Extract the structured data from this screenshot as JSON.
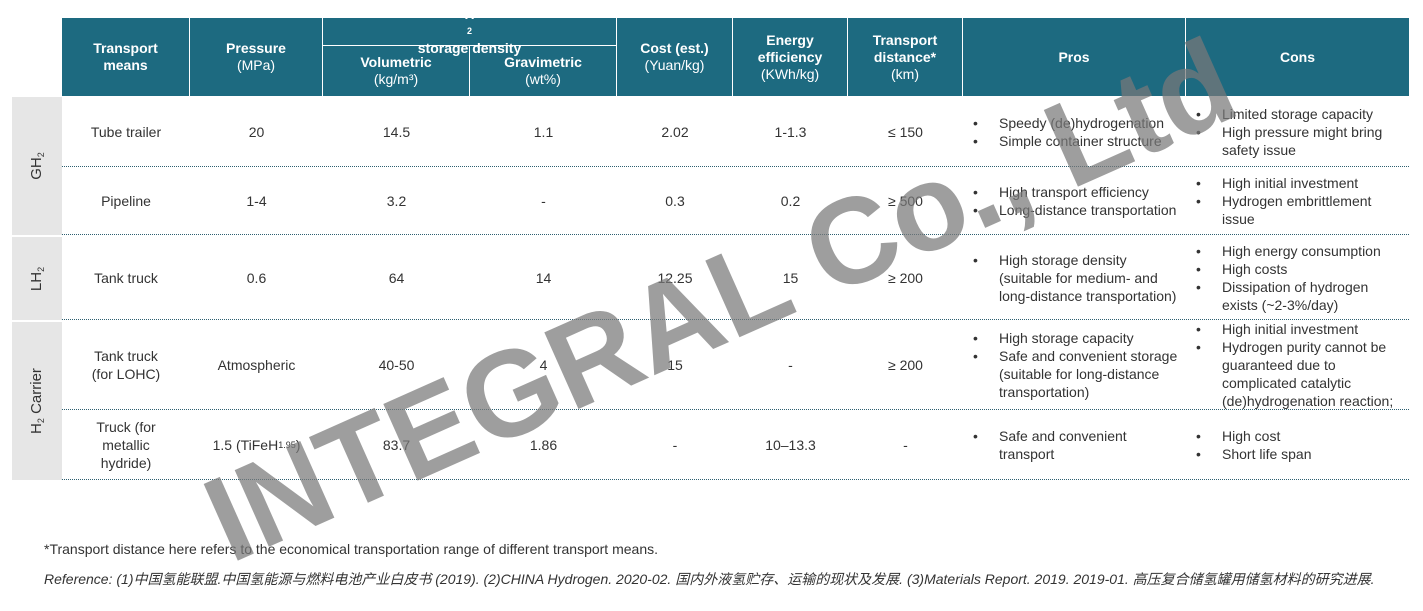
{
  "table": {
    "group_header": {
      "text": "H",
      "sub": "2",
      "after": " storage density"
    },
    "columns": [
      {
        "title": "Transport means"
      },
      {
        "title": "Pressure",
        "unit": "(MPa)"
      },
      {
        "title": "Volumetric",
        "unit": "(kg/m³)"
      },
      {
        "title": "Gravimetric",
        "unit": "(wt%)"
      },
      {
        "title": "Cost (est.)",
        "unit": "(Yuan/kg)"
      },
      {
        "title": "Energy efficiency",
        "unit": "(KWh/kg)"
      },
      {
        "title": "Transport distance*",
        "unit": "(km)"
      },
      {
        "title": "Pros"
      },
      {
        "title": "Cons"
      }
    ],
    "groups": [
      {
        "text": "GH",
        "sub": "2"
      },
      {
        "text": "LH",
        "sub": "2"
      },
      {
        "text": "H",
        "sub": "2",
        "after": " Carrier"
      }
    ],
    "rows": [
      [
        "Tube trailer",
        "20",
        "14.5",
        "1.1",
        "2.02",
        "1-1.3",
        "≤ 150",
        [
          "Speedy (de)hydrogenation",
          "Simple container structure"
        ],
        [
          "Limited storage capacity",
          "High pressure might bring safety issue"
        ]
      ],
      [
        "Pipeline",
        "1-4",
        "3.2",
        "-",
        "0.3",
        "0.2",
        "≥ 500",
        [
          "High transport efficiency",
          "Long-distance transportation"
        ],
        [
          "High initial investment",
          "Hydrogen embrittlement issue"
        ]
      ],
      [
        "Tank truck",
        "0.6",
        "64",
        "14",
        "12.25",
        "15",
        "≥ 200",
        [
          "High storage density (suitable for medium- and long-distance transportation)"
        ],
        [
          "High energy consumption",
          "High costs",
          "Dissipation of hydrogen exists (~2-3%/day)"
        ]
      ],
      [
        "Tank truck (for LOHC)",
        "Atmospheric",
        "40-50",
        "4",
        "15",
        "-",
        "≥ 200",
        [
          "High storage capacity",
          "Safe and convenient storage (suitable for long-distance transportation)"
        ],
        [
          "High initial investment",
          "Hydrogen purity cannot be guaranteed due to complicated catalytic (de)hydrogenation reaction;"
        ]
      ],
      [
        "Truck (for metallic hydride)",
        {
          "text": "1.5 (TiFeH",
          "sub": "1.95",
          "after": ")"
        },
        "83.7",
        "1.86",
        "-",
        "10–13.3",
        "-",
        [
          "Safe and convenient transport"
        ],
        [
          "High cost",
          "Short life span"
        ]
      ]
    ]
  },
  "footnote": "*Transport distance here refers to the economical transportation range of different transport means.",
  "reference": "Reference: (1)中国氢能联盟.中国氢能源与燃料电池产业白皮书 (2019). (2)CHINA Hydrogen. 2020-02. 国内外液氢贮存、运输的现状及发展. (3)Materials Report. 2019. 2019-01. 高压复合储氢罐用储氢材料的研究进展.",
  "watermark": "INTEGRAL Co., Ltd"
}
